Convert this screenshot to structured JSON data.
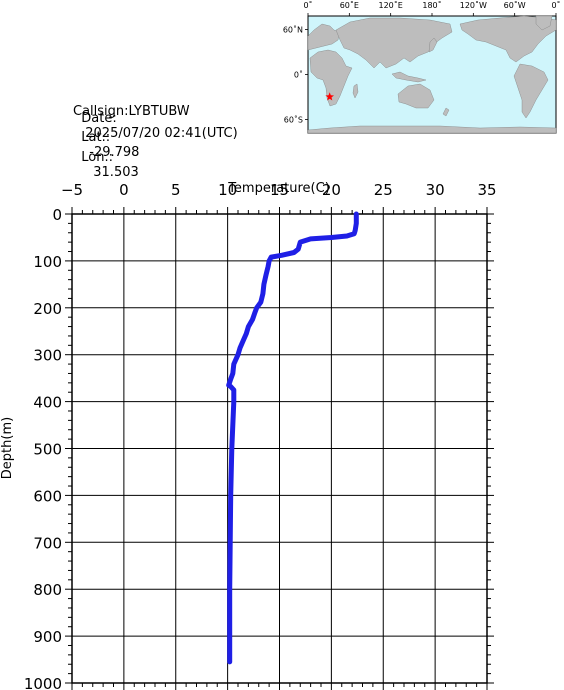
{
  "station": {
    "callsign": "Callsign:LYBTUBW",
    "date_label": "Date:",
    "date_value": "2025/07/20 02:41(UTC)",
    "lat_label": "Lat.:",
    "lat_value": "-29.798",
    "lon_label": "Lon.:",
    "lon_value": "31.503"
  },
  "map": {
    "lon_ticks": [
      "0˚",
      "60˚E",
      "120˚E",
      "180˚",
      "120˚W",
      "60˚W",
      "0˚"
    ],
    "lat_ticks": [
      "60˚N",
      "0˚",
      "60˚S"
    ],
    "ocean_color": "#cff5fb",
    "land_color": "#bdbdbd",
    "marker_icon": "red-star-icon",
    "marker_color": "#ff0000",
    "marker_lat": -29.798,
    "marker_lon": 31.503
  },
  "chart_data": {
    "type": "line",
    "title": "",
    "xlabel": "Temperature(C)",
    "ylabel": "Depth(m)",
    "xlim": [
      -5,
      35
    ],
    "ylim": [
      1000,
      0
    ],
    "x_axis_position": "top",
    "grid": true,
    "x_ticks": [
      -5,
      0,
      5,
      10,
      15,
      20,
      25,
      30,
      35
    ],
    "y_ticks": [
      0,
      100,
      200,
      300,
      400,
      500,
      600,
      700,
      800,
      900,
      1000
    ],
    "line_color": "#1f1fe6",
    "series": [
      {
        "x": [
          22.4,
          22.4,
          22.3,
          22.2,
          21.5,
          20.0,
          18.0,
          17.0,
          16.8,
          16.4,
          15.2,
          14.2,
          14.0,
          13.9,
          13.7,
          13.5,
          13.4,
          13.2,
          12.8,
          12.6,
          12.4,
          12.0,
          11.8,
          11.5,
          11.2,
          11.0,
          10.6,
          10.5,
          10.3,
          10.1,
          10.3,
          10.6,
          10.6,
          10.5,
          10.4,
          10.3,
          10.2,
          10.2
        ],
        "y": [
          0,
          20,
          35,
          42,
          47,
          50,
          53,
          60,
          75,
          82,
          88,
          92,
          100,
          112,
          130,
          150,
          170,
          188,
          200,
          212,
          225,
          240,
          255,
          270,
          285,
          300,
          320,
          340,
          352,
          365,
          368,
          375,
          400,
          450,
          500,
          600,
          800,
          955
        ]
      }
    ]
  }
}
